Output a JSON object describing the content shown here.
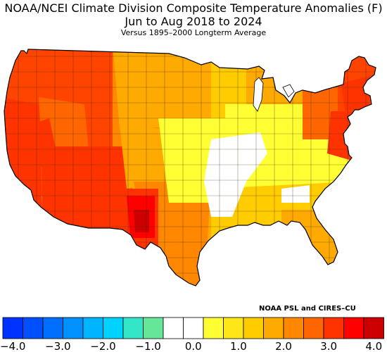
{
  "header": {
    "title_line1": "NOAA/NCEI Climate Division Composite Temperature Anomalies (F)",
    "title_line2": "Jun to Aug 2018 to 2024",
    "subtitle": "Versus 1895–2000 Longterm Average"
  },
  "credit": "NOAA PSL and CIRES–CU",
  "legend": {
    "colors": [
      "#0033ff",
      "#0050ff",
      "#006eff",
      "#0091ff",
      "#00b4ff",
      "#00d2ff",
      "#33e6c8",
      "#66e699",
      "#ffffff",
      "#ffffff",
      "#ffff33",
      "#ffe619",
      "#ffcc00",
      "#ffaa00",
      "#ff8800",
      "#ff6600",
      "#ff3300",
      "#ff0000",
      "#cc0000"
    ],
    "ticks": [
      "−4.0",
      "−3.0",
      "−2.0",
      "−1.0",
      "0.0",
      "1.0",
      "2.0",
      "3.0",
      "4.0"
    ]
  },
  "map": {
    "regions": [
      {
        "name": "pacific-northwest-coast",
        "color": "#ff4400"
      },
      {
        "name": "california",
        "color": "#ff3300"
      },
      {
        "name": "great-basin",
        "color": "#ff6600"
      },
      {
        "name": "southwest-desert",
        "color": "#ff3300"
      },
      {
        "name": "rockies-north",
        "color": "#ff8800"
      },
      {
        "name": "northern-plains",
        "color": "#ffaa00"
      },
      {
        "name": "southern-plains",
        "color": "#ffaa00"
      },
      {
        "name": "texas-gulf",
        "color": "#ff8800"
      },
      {
        "name": "west-texas",
        "color": "#ff3300"
      },
      {
        "name": "midwest",
        "color": "#ffcc00"
      },
      {
        "name": "central-plains",
        "color": "#ffff33"
      },
      {
        "name": "ohio-valley",
        "color": "#ffff33"
      },
      {
        "name": "southeast",
        "color": "#ffcc00"
      },
      {
        "name": "florida",
        "color": "#ffaa00"
      },
      {
        "name": "great-lakes",
        "color": "#ffaa00"
      },
      {
        "name": "northeast",
        "color": "#ff6600"
      },
      {
        "name": "new-england",
        "color": "#ff4400"
      },
      {
        "name": "mid-atlantic-coast",
        "color": "#ff3300"
      }
    ],
    "zero_zone_color": "#ffffff",
    "hotspot_colors": [
      "#ff0000",
      "#cc0000"
    ]
  }
}
